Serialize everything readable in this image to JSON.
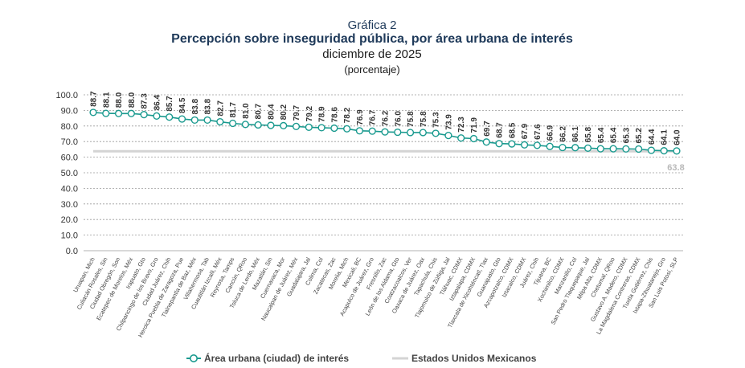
{
  "header": {
    "kicker": "Gráfica 2",
    "title": "Percepción sobre inseguridad pública, por área urbana de interés",
    "subtitle": "diciembre de 2025",
    "unit": "(porcentaje)"
  },
  "colors": {
    "series": "#1a9a8f",
    "national": "#d4d4d4",
    "grid": "#9a9a9a"
  },
  "chart_data": {
    "type": "line",
    "y_ticks": [
      "0.0",
      "10.0",
      "20.0",
      "30.0",
      "40.0",
      "50.0",
      "60.0",
      "70.0",
      "80.0",
      "90.0",
      "100.0"
    ],
    "ylim": [
      0,
      100
    ],
    "grid": true,
    "legend_position": "bottom",
    "categories": [
      "Uruapan, Mich",
      "Culiacán Rosales, Sin",
      "Ciudad Obregón, Son",
      "Ecatepec de Morelos, Méx",
      "Irapuato, Gto",
      "Chilpancingo de los Bravo, Gro",
      "Ciudad Juárez, Chih",
      "Heroica Puebla de Zaragoza, Pue",
      "Tlalnepantla de Baz, Méx",
      "Villahermosa, Tab",
      "Cuautitlán Izcalli, Méx",
      "Reynosa, Tamps",
      "Cancún, QRoo",
      "Toluca de Lerdo, Méx",
      "Mazatlán, Sin",
      "Cuernavaca, Mor",
      "Naucalpan de Juárez, Méx",
      "Guadalajara, Jal",
      "Colima, Col",
      "Zacatecas, Zac",
      "Morelia, Mich",
      "Mexicali, BC",
      "Acapulco de Juárez, Gro",
      "Fresnillo, Zac",
      "León de los Aldama, Gto",
      "Coatzacoalcos, Ver",
      "Oaxaca de Juárez, Oax",
      "Tapachula, Chis",
      "Tlajomulco de Zúñiga, Jal",
      "Tláhuac, CDMX",
      "Iztapalapa, CDMX",
      "Tlaxcala de Xicohténcatl, Tlax",
      "Guanajuato, Gto",
      "Azcapotzalco, CDMX",
      "Iztacalco, CDMX",
      "Juárez, Chih",
      "Tijuana, BC",
      "Xochimilco, CDMX",
      "Manzanillo, Col",
      "San Pedro Tlaquepaque, Jal",
      "Milpa Alta, CDMX",
      "Chetumal, QRoo",
      "Gustavo A. Madero, CDMX",
      "La Magdalena Contreras, CDMX",
      "Tuxtla Gutiérrez, Chis",
      "Ixtapa-Zihuatanejo, Gro",
      "San Luis Potosí, SLP"
    ],
    "series": [
      {
        "name": "Área urbana (ciudad) de interés",
        "values": [
          88.7,
          88.1,
          88.0,
          88.0,
          87.3,
          86.4,
          85.7,
          84.5,
          83.8,
          83.8,
          82.7,
          81.7,
          81.0,
          80.7,
          80.4,
          80.2,
          79.7,
          79.2,
          78.9,
          78.6,
          78.2,
          76.9,
          76.7,
          76.2,
          76.0,
          75.8,
          75.8,
          75.3,
          73.9,
          72.3,
          71.9,
          69.7,
          68.7,
          68.5,
          67.9,
          67.6,
          66.9,
          66.2,
          66.1,
          65.8,
          65.4,
          65.4,
          65.3,
          65.2,
          64.4,
          64.1,
          64.0
        ],
        "labels": [
          "88.7",
          "88.1",
          "88.0",
          "88.0",
          "87.3",
          "86.4",
          "85.7",
          "84.5",
          "83.8",
          "83.8",
          "82.7",
          "81.7",
          "81.0",
          "80.7",
          "80.4",
          "80.2",
          "79.7",
          "79.2",
          "78.9",
          "78.6",
          "78.2",
          "76.9",
          "76.7",
          "76.2",
          "76.0",
          "75.8",
          "75.8",
          "75.3",
          "73.9",
          "72.3",
          "71.9",
          "69.7",
          "68.7",
          "68.5",
          "67.9",
          "67.6",
          "66.9",
          "66.2",
          "66.1",
          "65.8",
          "65.4",
          "65.4",
          "65.3",
          "65.2",
          "64.4",
          "64.1",
          "64.0"
        ]
      },
      {
        "name": "Estados Unidos Mexicanos",
        "value": 63.8,
        "label": "63.8"
      }
    ]
  },
  "legend": {
    "city_label": "Área urbana (ciudad) de interés",
    "national_label": "Estados Unidos Mexicanos"
  }
}
